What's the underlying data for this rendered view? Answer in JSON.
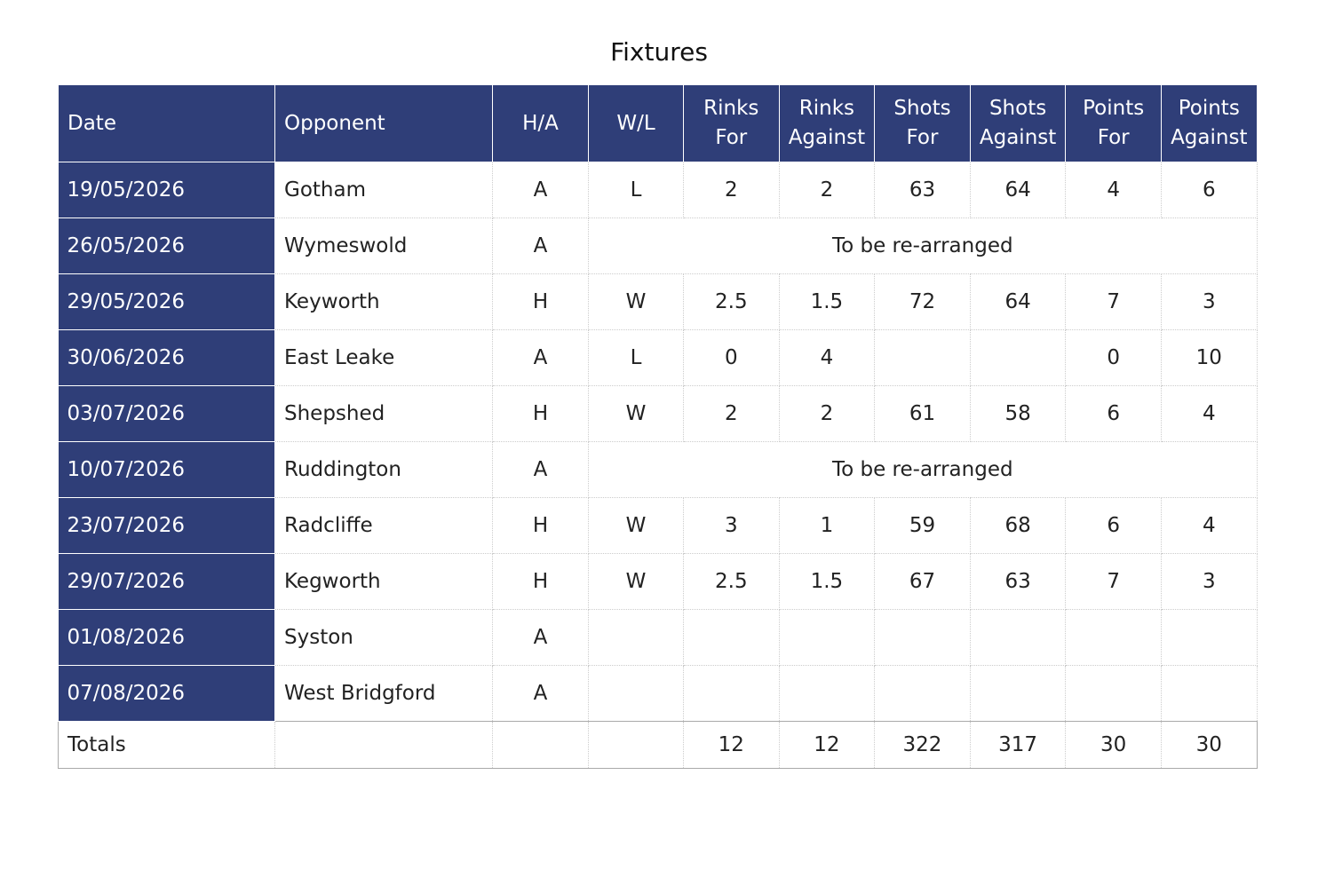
{
  "title": "Fixtures",
  "table": {
    "headers": [
      "Date",
      "Opponent",
      "H/A",
      "W/L",
      "Rinks For",
      "Rinks Against",
      "Shots For",
      "Shots Against",
      "Points For",
      "Points Against"
    ],
    "rows": [
      {
        "date": "19/05/2026",
        "opponent": "Gotham",
        "ha": "A",
        "wl": "L",
        "values": [
          2,
          2,
          63,
          64,
          4,
          6
        ]
      },
      {
        "date": "26/05/2026",
        "opponent": "Wymeswold",
        "ha": "A",
        "note": "To be re-arranged"
      },
      {
        "date": "29/05/2026",
        "opponent": "Keyworth",
        "ha": "H",
        "wl": "W",
        "values": [
          2.5,
          1.5,
          72,
          64,
          7,
          3
        ]
      },
      {
        "date": "30/06/2026",
        "opponent": "East Leake",
        "ha": "A",
        "wl": "L",
        "values": [
          0,
          4,
          null,
          null,
          0,
          10
        ]
      },
      {
        "date": "03/07/2026",
        "opponent": "Shepshed",
        "ha": "H",
        "wl": "W",
        "values": [
          2,
          2,
          61,
          58,
          6,
          4
        ]
      },
      {
        "date": "10/07/2026",
        "opponent": "Ruddington",
        "ha": "A",
        "note": "To be re-arranged"
      },
      {
        "date": "23/07/2026",
        "opponent": "Radcliffe",
        "ha": "H",
        "wl": "W",
        "values": [
          3,
          1,
          59,
          68,
          6,
          4
        ]
      },
      {
        "date": "29/07/2026",
        "opponent": "Kegworth",
        "ha": "H",
        "wl": "W",
        "values": [
          2.5,
          1.5,
          67,
          63,
          7,
          3
        ]
      },
      {
        "date": "01/08/2026",
        "opponent": "Syston",
        "ha": "A"
      },
      {
        "date": "07/08/2026",
        "opponent": "West Bridgford",
        "ha": "A"
      }
    ],
    "totals": {
      "label": "Totals",
      "values": [
        12,
        12,
        322,
        317,
        30,
        30
      ]
    }
  }
}
